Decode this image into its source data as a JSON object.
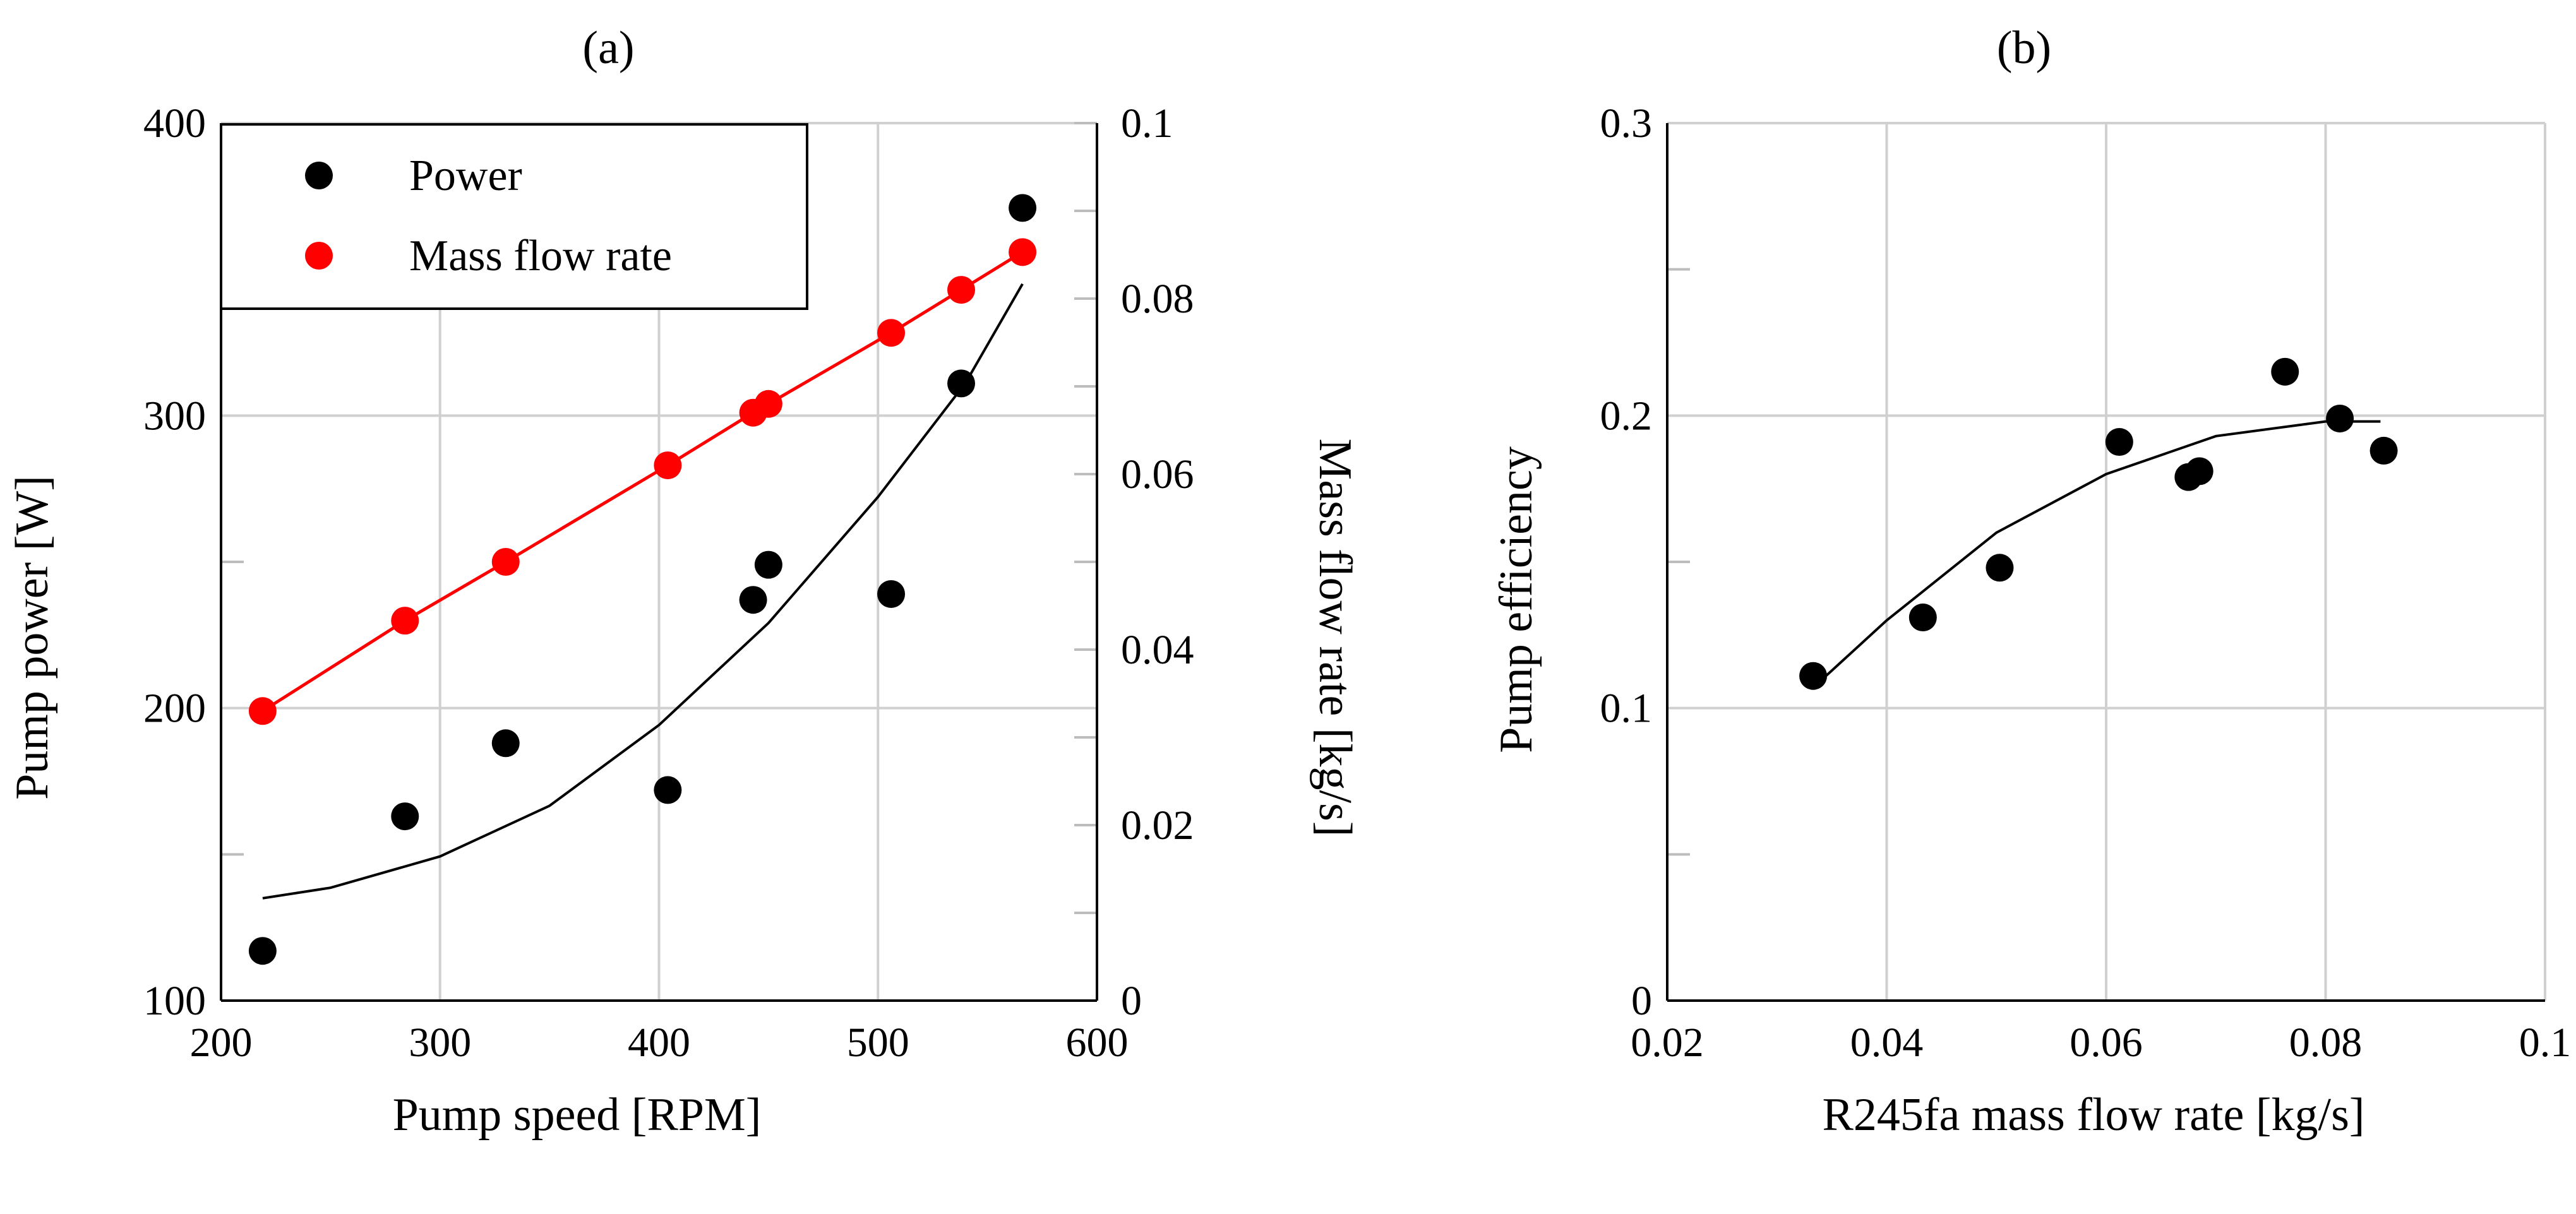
{
  "chart_data": [
    {
      "type": "scatter",
      "title": "(a)",
      "xlabel": "Pump speed [RPM]",
      "ylabel": "Pump power [W]",
      "y2label": "Mass flow rate [kg/s]",
      "xlim": [
        200,
        600
      ],
      "ylim": [
        100,
        400
      ],
      "y2lim": [
        0,
        0.1
      ],
      "x_ticks": [
        "200",
        "300",
        "400",
        "500",
        "600"
      ],
      "y_ticks": [
        "100",
        "200",
        "300",
        "400"
      ],
      "y2_ticks": [
        "0",
        "0.02",
        "0.04",
        "0.06",
        "0.08",
        "0.1"
      ],
      "legend_position": "top-left",
      "series": [
        {
          "name": "Power",
          "axis": "left",
          "color": "#000000",
          "marker": "circle",
          "x": [
            219,
            284,
            330,
            404,
            443,
            450,
            506,
            538,
            566
          ],
          "y": [
            117,
            163,
            188,
            172,
            237,
            249,
            239,
            311,
            371
          ]
        },
        {
          "name": "Mass flow rate",
          "axis": "right",
          "color": "#ff0000",
          "marker": "circle",
          "line": true,
          "x": [
            219,
            284,
            330,
            404,
            443,
            450,
            506,
            538,
            566
          ],
          "y": [
            0.033,
            0.0433,
            0.05,
            0.061,
            0.067,
            0.068,
            0.0761,
            0.081,
            0.0853
          ]
        }
      ],
      "trendline": {
        "series": "Power",
        "color": "#000000",
        "x": [
          219,
          250,
          300,
          350,
          400,
          450,
          500,
          540,
          566
        ],
        "y": [
          135,
          138.6,
          149.3,
          166.6,
          194.2,
          229.1,
          272.2,
          311.2,
          345
        ]
      }
    },
    {
      "type": "scatter",
      "title": "(b)",
      "xlabel": "R245fa mass flow rate [kg/s]",
      "ylabel": "Pump efficiency",
      "xlim": [
        0.02,
        0.1
      ],
      "ylim": [
        0,
        0.3
      ],
      "x_ticks": [
        "0.02",
        "0.04",
        "0.06",
        "0.08",
        "0.1"
      ],
      "y_ticks": [
        "0",
        "0.1",
        "0.2",
        "0.3"
      ],
      "series": [
        {
          "name": "Pump efficiency",
          "color": "#000000",
          "marker": "circle",
          "x": [
            0.0333,
            0.0433,
            0.0503,
            0.0612,
            0.0675,
            0.0685,
            0.0763,
            0.0813,
            0.0853
          ],
          "y": [
            0.111,
            0.131,
            0.148,
            0.191,
            0.179,
            0.181,
            0.215,
            0.199,
            0.188
          ]
        }
      ],
      "trendline": {
        "color": "#000000",
        "x": [
          0.0333,
          0.04,
          0.05,
          0.06,
          0.07,
          0.08,
          0.085
        ],
        "y": [
          0.107,
          0.13,
          0.16,
          0.18,
          0.193,
          0.198,
          0.198
        ]
      }
    }
  ]
}
